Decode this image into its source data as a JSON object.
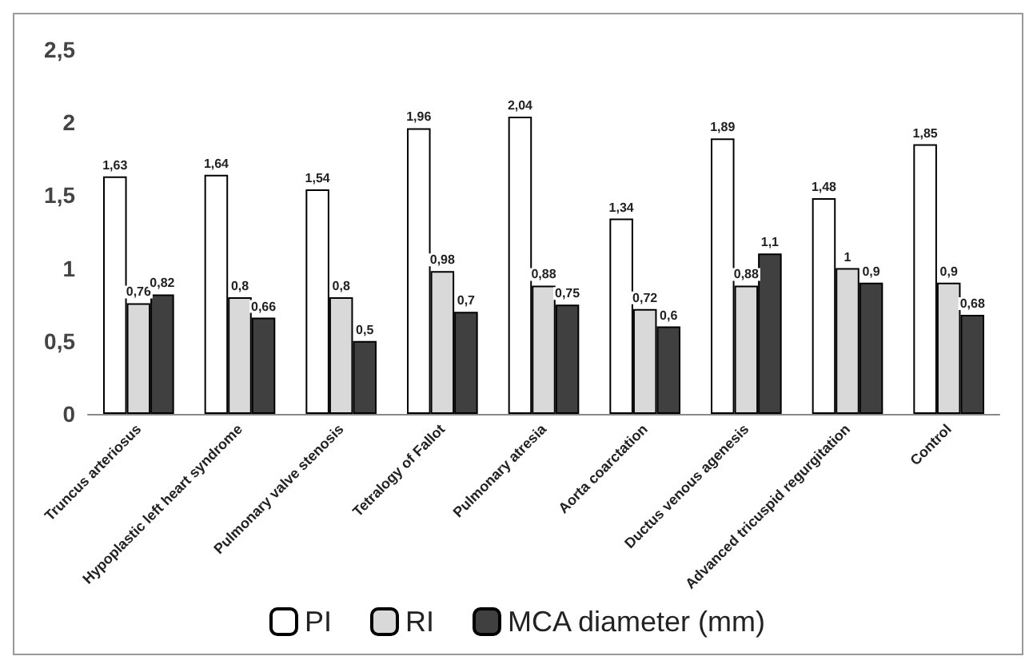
{
  "chart_data": {
    "type": "bar",
    "categories": [
      "Truncus arteriosus",
      "Hypoplastic left heart syndrome",
      "Pulmonary valve stenosis",
      "Tetralogy of Fallot",
      "Pulmonary atresia",
      "Aorta coarctation",
      "Ductus venous agenesis",
      "Advanced tricuspid regurgitation",
      "Control"
    ],
    "series": [
      {
        "name": "PI",
        "color": "#ffffff",
        "values": [
          1.63,
          1.64,
          1.54,
          1.96,
          2.04,
          1.34,
          1.89,
          1.48,
          1.85
        ],
        "value_labels": [
          "1,63",
          "1,64",
          "1,54",
          "1,96",
          "2,04",
          "1,34",
          "1,89",
          "1,48",
          "1,85"
        ]
      },
      {
        "name": "RI",
        "color": "#d9d9d9",
        "values": [
          0.76,
          0.8,
          0.8,
          0.98,
          0.88,
          0.72,
          0.88,
          1,
          0.9
        ],
        "value_labels": [
          "0,76",
          "0,8",
          "0,8",
          "0,98",
          "0,88",
          "0,72",
          "0,88",
          "1",
          "0,9"
        ]
      },
      {
        "name": "MCA diameter (mm)",
        "color": "#404040",
        "values": [
          0.82,
          0.66,
          0.5,
          0.7,
          0.75,
          0.6,
          1.1,
          0.9,
          0.68
        ],
        "value_labels": [
          "0,82",
          "0,66",
          "0,5",
          "0,7",
          "0,75",
          "0,6",
          "1,1",
          "0,9",
          "0,68"
        ]
      }
    ],
    "ylim": [
      0,
      2.5
    ],
    "yticks": [
      {
        "value": 0,
        "label": "0"
      },
      {
        "value": 0.5,
        "label": "0,5"
      },
      {
        "value": 1,
        "label": "1"
      },
      {
        "value": 1.5,
        "label": "1,5"
      },
      {
        "value": 2,
        "label": "2"
      },
      {
        "value": 2.5,
        "label": "2,5"
      }
    ],
    "grid": false,
    "legend": "bottom"
  }
}
